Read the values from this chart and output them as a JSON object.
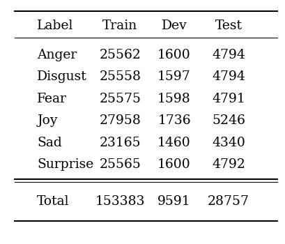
{
  "columns": [
    "Label",
    "Train",
    "Dev",
    "Test"
  ],
  "rows": [
    [
      "Anger",
      "25562",
      "1600",
      "4794"
    ],
    [
      "Disgust",
      "25558",
      "1597",
      "4794"
    ],
    [
      "Fear",
      "25575",
      "1598",
      "4791"
    ],
    [
      "Joy",
      "27958",
      "1736",
      "5246"
    ],
    [
      "Sad",
      "23165",
      "1460",
      "4340"
    ],
    [
      "Surprise",
      "25565",
      "1600",
      "4792"
    ]
  ],
  "total_row": [
    "Total",
    "153383",
    "9591",
    "28757"
  ],
  "font_size": 13.5,
  "bg_color": "#ffffff",
  "text_color": "#000000",
  "font_family": "serif"
}
